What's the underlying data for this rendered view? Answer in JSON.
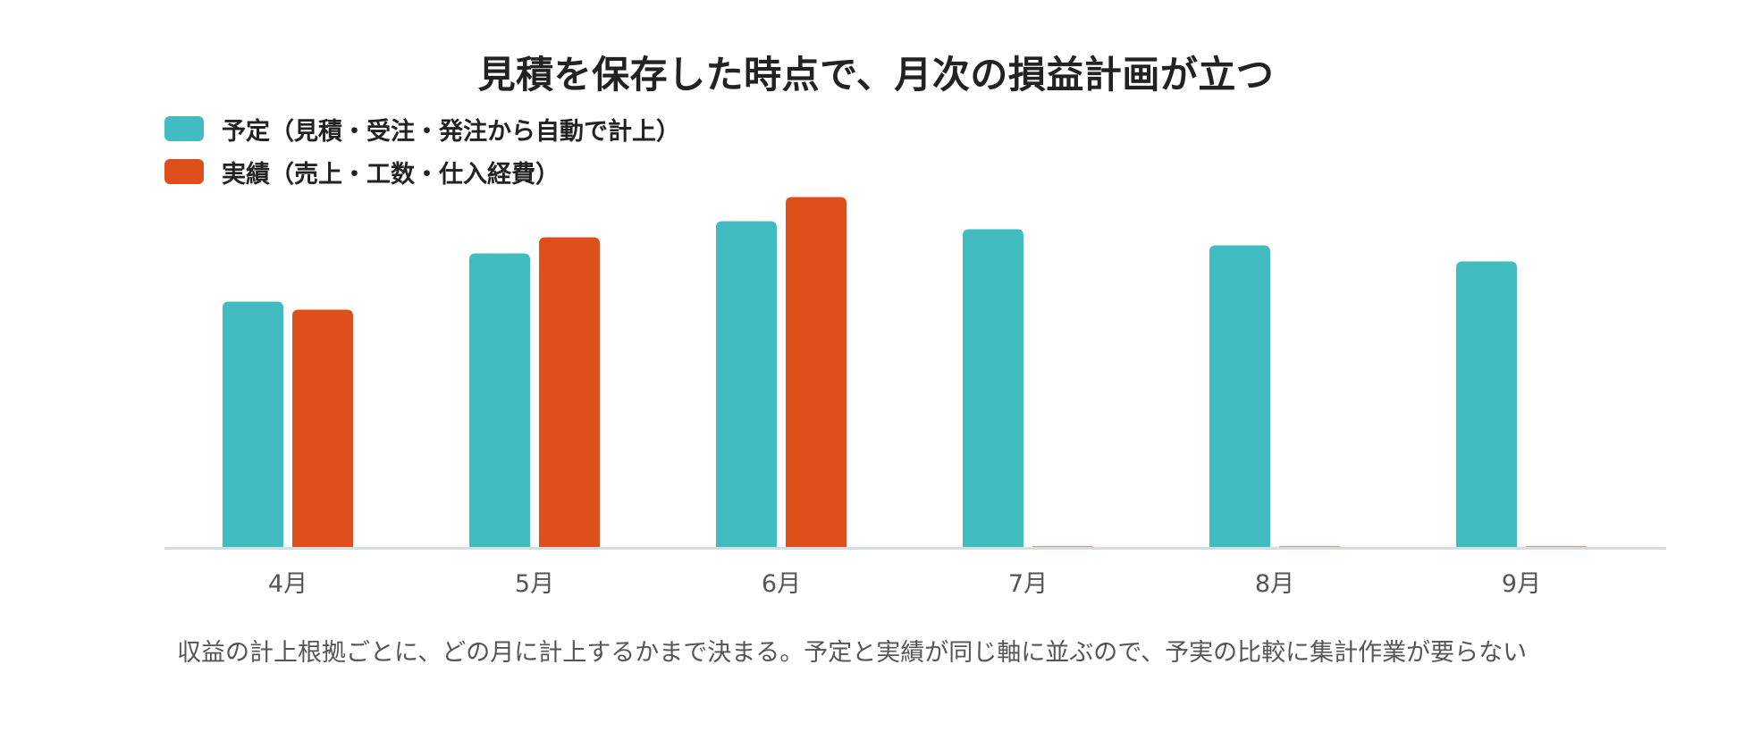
{
  "chart_data": {
    "type": "bar",
    "title": "見積を保存した時点で、月次の損益計画が立つ",
    "categories": [
      "4月",
      "5月",
      "6月",
      "7月",
      "8月",
      "9月"
    ],
    "series": [
      {
        "name": "予定（見積・受注・発注から自動で計上）",
        "color": "#41BCC0",
        "values": [
          61,
          73,
          81,
          79,
          75,
          71
        ]
      },
      {
        "name": "実績（売上・工数・仕入経費）",
        "color": "#DE4F1B",
        "values": [
          59,
          77,
          87,
          0,
          0,
          0
        ]
      }
    ],
    "ylim": [
      0,
      100
    ],
    "xlabel": "",
    "ylabel": "",
    "grid": false,
    "legend_position": "top-left"
  },
  "caption": "収益の計上根拠ごとに、どの月に計上するかまで決まる。予定と実績が同じ軸に並ぶので、予実の比較に集計作業が要らない"
}
